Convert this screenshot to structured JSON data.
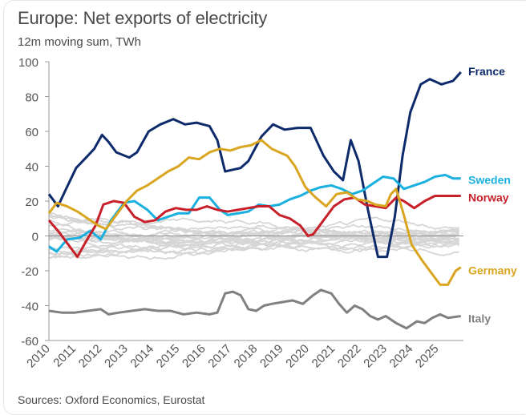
{
  "header": {
    "title": "Europe: Net exports of electricity",
    "subtitle": "12m moving sum, TWh"
  },
  "footer": {
    "source": "Sources: Oxford Economics, Eurostat"
  },
  "chart_data": {
    "type": "line",
    "title": "Europe: Net exports of electricity",
    "subtitle": "12m moving sum, TWh",
    "xlabel": "",
    "ylabel": "TWh",
    "xlim": [
      2010,
      2026
    ],
    "ylim": [
      -60,
      100
    ],
    "yticks": [
      100,
      80,
      60,
      40,
      20,
      0,
      -20,
      -40,
      -60
    ],
    "xticks": [
      "2010",
      "2011",
      "2012",
      "2013",
      "2014",
      "2015",
      "2016",
      "2017",
      "2018",
      "2019",
      "2020",
      "2021",
      "2022",
      "2023",
      "2024",
      "2025"
    ],
    "grid": false,
    "zero_line": true,
    "legend": "direct labels at right end of each highlighted series",
    "series": [
      {
        "name": "France",
        "color": "#0d2a6b",
        "highlight": true,
        "x": [
          2010.0,
          2010.35,
          2010.6,
          2011.05,
          2011.5,
          2011.75,
          2012.05,
          2012.3,
          2012.6,
          2013.1,
          2013.4,
          2013.85,
          2014.3,
          2014.8,
          2015.25,
          2015.7,
          2016.2,
          2016.5,
          2016.8,
          2017.4,
          2017.7,
          2018.2,
          2018.65,
          2019.1,
          2019.6,
          2020.1,
          2020.6,
          2021.0,
          2021.35,
          2021.65,
          2021.95,
          2022.3,
          2022.7,
          2023.05,
          2023.35,
          2023.65,
          2023.95,
          2024.35,
          2024.7,
          2025.15,
          2025.6,
          2025.9
        ],
        "y": [
          24,
          17,
          25,
          39,
          46,
          50,
          58,
          54,
          48,
          45,
          48,
          60,
          64,
          67,
          64,
          65,
          63,
          55,
          37,
          39,
          43,
          57,
          64,
          61,
          62,
          62,
          46,
          37,
          32,
          55,
          43,
          16,
          -12,
          -12,
          11,
          46,
          71,
          87,
          90,
          87,
          89,
          94
        ]
      },
      {
        "name": "Sweden",
        "color": "#1ab0e0",
        "highlight": true,
        "x": [
          2010.0,
          2010.3,
          2010.7,
          2011.2,
          2011.6,
          2012.0,
          2012.4,
          2012.9,
          2013.3,
          2013.8,
          2014.2,
          2014.6,
          2015.0,
          2015.4,
          2015.8,
          2016.2,
          2016.6,
          2016.9,
          2017.3,
          2017.7,
          2018.1,
          2018.5,
          2018.9,
          2019.3,
          2019.7,
          2020.1,
          2020.5,
          2020.9,
          2021.3,
          2021.7,
          2022.1,
          2022.5,
          2022.9,
          2023.3,
          2023.7,
          2024.1,
          2024.5,
          2024.9,
          2025.3,
          2025.6,
          2025.9
        ],
        "y": [
          -6,
          -9,
          -2,
          -1,
          3,
          -2,
          9,
          19,
          20,
          15,
          9,
          11,
          13,
          13,
          22,
          22,
          15,
          12,
          13,
          14,
          18,
          17,
          18,
          21,
          23,
          26,
          28,
          29,
          27,
          24,
          26,
          30,
          34,
          33,
          27,
          29,
          31,
          34,
          35,
          33,
          33
        ]
      },
      {
        "name": "Norway",
        "color": "#c8202a",
        "highlight": true,
        "x": [
          2010.0,
          2010.4,
          2010.8,
          2011.1,
          2011.4,
          2011.8,
          2012.1,
          2012.5,
          2012.9,
          2013.3,
          2013.7,
          2014.1,
          2014.5,
          2014.9,
          2015.3,
          2015.7,
          2016.1,
          2016.5,
          2016.9,
          2017.3,
          2017.7,
          2018.1,
          2018.5,
          2018.9,
          2019.3,
          2019.7,
          2020.0,
          2020.2,
          2020.6,
          2021.0,
          2021.4,
          2021.8,
          2022.2,
          2022.6,
          2023.0,
          2023.4,
          2023.7,
          2024.1,
          2024.5,
          2024.9,
          2025.3,
          2025.9
        ],
        "y": [
          9,
          2,
          -6,
          -12,
          -4,
          6,
          18,
          20,
          19,
          11,
          8,
          9,
          14,
          16,
          15,
          15,
          17,
          15,
          14,
          15,
          16,
          17,
          17,
          12,
          10,
          6,
          0,
          1,
          9,
          17,
          21,
          22,
          18,
          17,
          16,
          22,
          20,
          16,
          20,
          23,
          23,
          23
        ]
      },
      {
        "name": "Germany",
        "color": "#daa520",
        "highlight": true,
        "x": [
          2010.0,
          2010.3,
          2010.7,
          2011.1,
          2011.5,
          2011.9,
          2012.2,
          2012.6,
          2013.0,
          2013.4,
          2013.8,
          2014.2,
          2014.6,
          2015.0,
          2015.4,
          2015.8,
          2016.2,
          2016.6,
          2017.0,
          2017.4,
          2017.8,
          2018.2,
          2018.6,
          2018.9,
          2019.2,
          2019.5,
          2019.9,
          2020.3,
          2020.7,
          2021.1,
          2021.5,
          2021.9,
          2022.3,
          2022.6,
          2023.0,
          2023.2,
          2023.4,
          2023.7,
          2024.0,
          2024.4,
          2024.8,
          2025.1,
          2025.4,
          2025.7,
          2025.9
        ],
        "y": [
          13,
          19,
          17,
          14,
          10,
          6,
          4,
          12,
          20,
          26,
          29,
          33,
          37,
          40,
          45,
          44,
          48,
          50,
          49,
          51,
          52,
          55,
          50,
          48,
          46,
          40,
          28,
          22,
          17,
          24,
          25,
          21,
          20,
          18,
          17,
          24,
          27,
          12,
          -5,
          -14,
          -22,
          -28,
          -28,
          -20,
          -18
        ]
      },
      {
        "name": "Italy",
        "color": "#808080",
        "highlight": true,
        "x": [
          2010.0,
          2010.5,
          2011.0,
          2011.5,
          2012.0,
          2012.3,
          2012.7,
          2013.2,
          2013.7,
          2014.2,
          2014.7,
          2015.2,
          2015.7,
          2016.2,
          2016.5,
          2016.8,
          2017.1,
          2017.4,
          2017.7,
          2018.0,
          2018.3,
          2018.6,
          2019.0,
          2019.4,
          2019.8,
          2020.2,
          2020.5,
          2020.9,
          2021.2,
          2021.5,
          2021.8,
          2022.1,
          2022.4,
          2022.7,
          2023.0,
          2023.4,
          2023.8,
          2024.2,
          2024.5,
          2024.8,
          2025.1,
          2025.4,
          2025.9
        ],
        "y": [
          -43,
          -44,
          -44,
          -43,
          -42,
          -45,
          -44,
          -43,
          -42,
          -43,
          -43,
          -45,
          -44,
          -45,
          -44,
          -33,
          -32,
          -34,
          -42,
          -43,
          -40,
          -39,
          -38,
          -37,
          -39,
          -34,
          -31,
          -33,
          -39,
          -44,
          -40,
          -42,
          -46,
          -48,
          -46,
          -50,
          -53,
          -49,
          -50,
          -47,
          -45,
          -47,
          -46
        ]
      }
    ],
    "background_series_count": 20,
    "background_series_color": "#d6d6d6",
    "labels": [
      {
        "series": "France",
        "text": "France"
      },
      {
        "series": "Sweden",
        "text": "Sweden"
      },
      {
        "series": "Norway",
        "text": "Norway"
      },
      {
        "series": "Germany",
        "text": "Germany"
      },
      {
        "series": "Italy",
        "text": "Italy"
      }
    ]
  }
}
